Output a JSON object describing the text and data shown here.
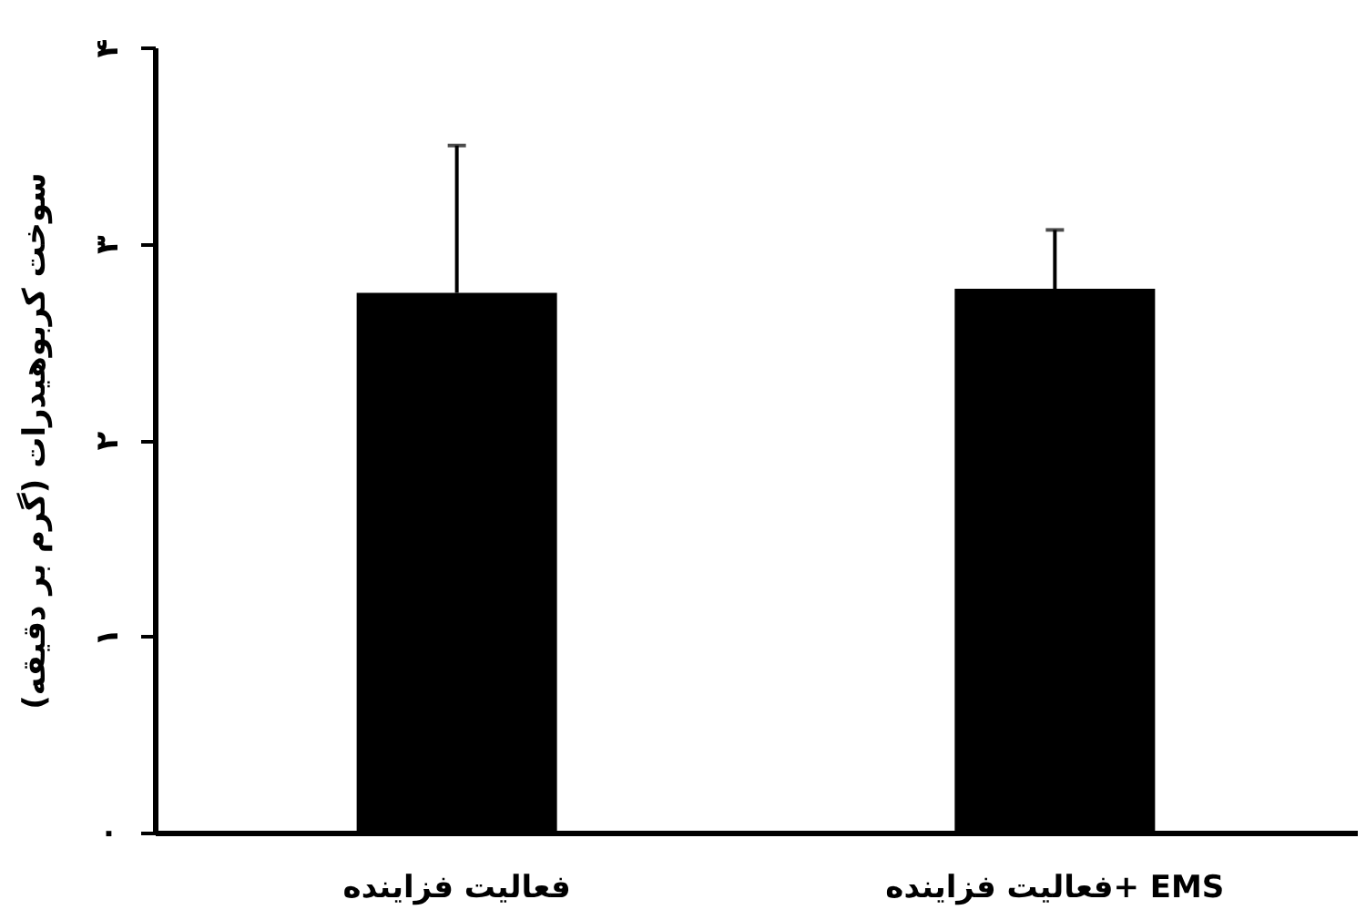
{
  "chart_data": {
    "type": "bar",
    "ylabel": "سوخت کربوهیدرات (گرم بر دقیقه)",
    "categories": [
      "فعالیت فزاینده",
      "فعالیت فزاینده+ EMS"
    ],
    "values": [
      2.75,
      2.77
    ],
    "errors": [
      [
        2.75,
        3.5
      ],
      [
        2.77,
        3.07
      ]
    ],
    "color": "#000000",
    "ylim": [
      0,
      4
    ],
    "yticks": [
      {
        "value": 0,
        "label": "۰"
      },
      {
        "value": 1,
        "label": "۱"
      },
      {
        "value": 2,
        "label": "۲"
      },
      {
        "value": 3,
        "label": "۳"
      },
      {
        "value": 4,
        "label": "۴"
      }
    ],
    "grid": false
  }
}
